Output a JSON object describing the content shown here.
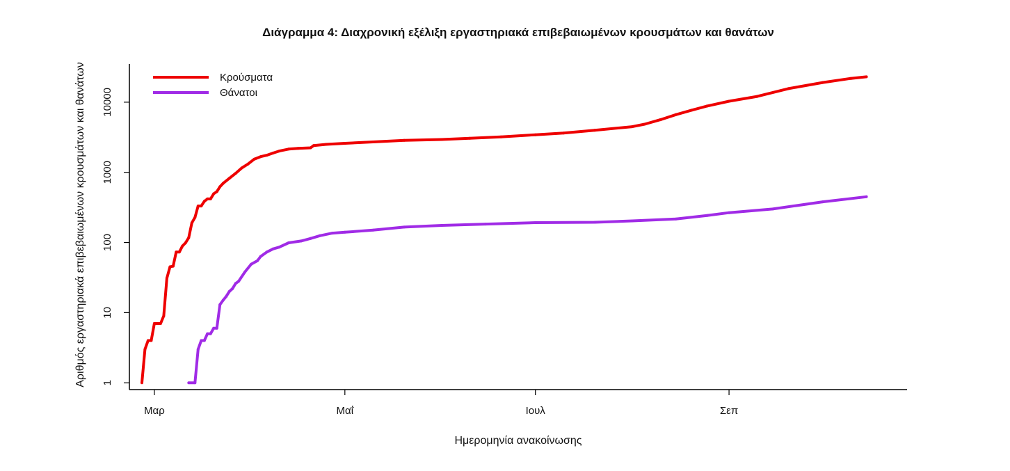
{
  "chart_data": {
    "type": "line",
    "title": "Διάγραμμα 4: Διαχρονική εξέλιξη εργαστηριακά επιβεβαιωμένων κρουσμάτων και θανάτων",
    "xlabel": "Ημερομηνία ανακοίνωσης",
    "ylabel": "Αριθμός εργαστηριακά επιβεβαιωμένων κρουσμάτων και θανάτων",
    "y_scale": "log",
    "ylim": [
      0.8,
      35000
    ],
    "xlim": [
      "2020-02-22",
      "2020-10-28"
    ],
    "x_ticks": [
      {
        "date": "2020-03-01",
        "label": "Μαρ"
      },
      {
        "date": "2020-05-01",
        "label": "Μαΐ"
      },
      {
        "date": "2020-07-01",
        "label": "Ιουλ"
      },
      {
        "date": "2020-09-01",
        "label": "Σεπ"
      }
    ],
    "y_ticks": [
      {
        "value": 1,
        "label": "1"
      },
      {
        "value": 10,
        "label": "10"
      },
      {
        "value": 100,
        "label": "100"
      },
      {
        "value": 1000,
        "label": "1000"
      },
      {
        "value": 10000,
        "label": "10000"
      }
    ],
    "grid": false,
    "legend": "top-left",
    "series": [
      {
        "name": "Κρούσματα",
        "color": "#ee0000",
        "points": [
          [
            "2020-02-26",
            1
          ],
          [
            "2020-02-27",
            3
          ],
          [
            "2020-02-28",
            4
          ],
          [
            "2020-02-29",
            4
          ],
          [
            "2020-03-01",
            7
          ],
          [
            "2020-03-03",
            7
          ],
          [
            "2020-03-04",
            9
          ],
          [
            "2020-03-05",
            31
          ],
          [
            "2020-03-06",
            45
          ],
          [
            "2020-03-07",
            46
          ],
          [
            "2020-03-08",
            73
          ],
          [
            "2020-03-09",
            73
          ],
          [
            "2020-03-10",
            89
          ],
          [
            "2020-03-11",
            99
          ],
          [
            "2020-03-12",
            117
          ],
          [
            "2020-03-13",
            190
          ],
          [
            "2020-03-14",
            228
          ],
          [
            "2020-03-15",
            331
          ],
          [
            "2020-03-16",
            331
          ],
          [
            "2020-03-17",
            387
          ],
          [
            "2020-03-18",
            418
          ],
          [
            "2020-03-19",
            418
          ],
          [
            "2020-03-20",
            495
          ],
          [
            "2020-03-21",
            530
          ],
          [
            "2020-03-22",
            624
          ],
          [
            "2020-03-23",
            695
          ],
          [
            "2020-03-25",
            821
          ],
          [
            "2020-03-27",
            966
          ],
          [
            "2020-03-29",
            1156
          ],
          [
            "2020-03-31",
            1314
          ],
          [
            "2020-04-02",
            1544
          ],
          [
            "2020-04-04",
            1673
          ],
          [
            "2020-04-06",
            1755
          ],
          [
            "2020-04-08",
            1884
          ],
          [
            "2020-04-10",
            2011
          ],
          [
            "2020-04-13",
            2145
          ],
          [
            "2020-04-16",
            2192
          ],
          [
            "2020-04-20",
            2235
          ],
          [
            "2020-04-21",
            2401
          ],
          [
            "2020-04-25",
            2506
          ],
          [
            "2020-05-01",
            2591
          ],
          [
            "2020-05-10",
            2710
          ],
          [
            "2020-05-20",
            2850
          ],
          [
            "2020-06-01",
            2937
          ],
          [
            "2020-06-10",
            3058
          ],
          [
            "2020-06-20",
            3203
          ],
          [
            "2020-07-01",
            3432
          ],
          [
            "2020-07-10",
            3622
          ],
          [
            "2020-07-20",
            3983
          ],
          [
            "2020-08-01",
            4477
          ],
          [
            "2020-08-05",
            4855
          ],
          [
            "2020-08-10",
            5623
          ],
          [
            "2020-08-15",
            6632
          ],
          [
            "2020-08-20",
            7684
          ],
          [
            "2020-08-25",
            8819
          ],
          [
            "2020-09-01",
            10317
          ],
          [
            "2020-09-10",
            12080
          ],
          [
            "2020-09-20",
            15595
          ],
          [
            "2020-10-01",
            19079
          ],
          [
            "2020-10-10",
            21799
          ],
          [
            "2020-10-15",
            23000
          ]
        ]
      },
      {
        "name": "Θάνατοι",
        "color": "#a02be6",
        "points": [
          [
            "2020-03-12",
            1
          ],
          [
            "2020-03-14",
            1
          ],
          [
            "2020-03-15",
            3
          ],
          [
            "2020-03-16",
            4
          ],
          [
            "2020-03-17",
            4
          ],
          [
            "2020-03-18",
            5
          ],
          [
            "2020-03-19",
            5
          ],
          [
            "2020-03-20",
            6
          ],
          [
            "2020-03-21",
            6
          ],
          [
            "2020-03-22",
            13
          ],
          [
            "2020-03-23",
            15
          ],
          [
            "2020-03-24",
            17
          ],
          [
            "2020-03-25",
            20
          ],
          [
            "2020-03-26",
            22
          ],
          [
            "2020-03-27",
            26
          ],
          [
            "2020-03-28",
            28
          ],
          [
            "2020-03-30",
            38
          ],
          [
            "2020-04-01",
            49
          ],
          [
            "2020-04-03",
            55
          ],
          [
            "2020-04-04",
            63
          ],
          [
            "2020-04-06",
            73
          ],
          [
            "2020-04-08",
            81
          ],
          [
            "2020-04-10",
            86
          ],
          [
            "2020-04-13",
            99
          ],
          [
            "2020-04-17",
            105
          ],
          [
            "2020-04-20",
            114
          ],
          [
            "2020-04-23",
            125
          ],
          [
            "2020-04-27",
            136
          ],
          [
            "2020-05-01",
            140
          ],
          [
            "2020-05-10",
            150
          ],
          [
            "2020-05-20",
            166
          ],
          [
            "2020-06-01",
            175
          ],
          [
            "2020-06-15",
            183
          ],
          [
            "2020-07-01",
            192
          ],
          [
            "2020-07-20",
            194
          ],
          [
            "2020-08-01",
            203
          ],
          [
            "2020-08-15",
            216
          ],
          [
            "2020-08-25",
            242
          ],
          [
            "2020-09-01",
            266
          ],
          [
            "2020-09-15",
            300
          ],
          [
            "2020-10-01",
            380
          ],
          [
            "2020-10-15",
            449
          ]
        ]
      }
    ]
  }
}
